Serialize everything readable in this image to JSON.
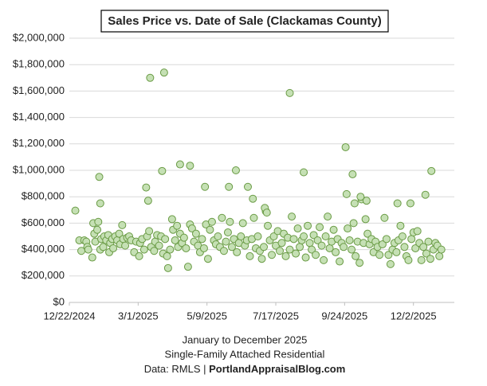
{
  "chart_data": {
    "type": "scatter",
    "title": "Sales Price vs. Date of Sale (Clackamas County)",
    "notes": [
      "January to December 2025",
      "Single-Family Attached Residential"
    ],
    "source": {
      "label": "Data: RMLS |",
      "site": "PortlandAppraisalBlog.com"
    },
    "marker_fill": "#c5e0b4",
    "marker_stroke": "#6a9b45",
    "grid": true,
    "xlim": [
      "2024-12-22",
      "2026-01-12"
    ],
    "xticks": [
      {
        "value": "2024-12-22",
        "label": "12/22/2024"
      },
      {
        "value": "2025-03-01",
        "label": "3/1/2025"
      },
      {
        "value": "2025-05-09",
        "label": "5/9/2025"
      },
      {
        "value": "2025-07-17",
        "label": "7/17/2025"
      },
      {
        "value": "2025-09-24",
        "label": "9/24/2025"
      },
      {
        "value": "2025-12-02",
        "label": "12/2/2025"
      }
    ],
    "ylim": [
      0,
      2000000
    ],
    "yticks": [
      {
        "value": 0,
        "label": "$0"
      },
      {
        "value": 200000,
        "label": "$200,000"
      },
      {
        "value": 400000,
        "label": "$400,000"
      },
      {
        "value": 600000,
        "label": "$600,000"
      },
      {
        "value": 800000,
        "label": "$800,000"
      },
      {
        "value": 1000000,
        "label": "$1,000,000"
      },
      {
        "value": 1200000,
        "label": "$1,200,000"
      },
      {
        "value": 1400000,
        "label": "$1,400,000"
      },
      {
        "value": 1600000,
        "label": "$1,600,000"
      },
      {
        "value": 1800000,
        "label": "$1,800,000"
      },
      {
        "value": 2000000,
        "label": "$2,000,000"
      }
    ],
    "x": [
      "2025-01-01",
      "2025-01-03",
      "2025-01-06",
      "2025-01-08",
      "2025-01-09",
      "2025-01-10",
      "2025-01-14",
      "2025-01-15",
      "2025-01-16",
      "2025-01-17",
      "2025-01-19",
      "2025-01-20",
      "2025-01-22",
      "2025-01-23",
      "2025-01-25",
      "2025-01-26",
      "2025-01-28",
      "2025-01-30",
      "2025-01-31",
      "2025-02-01",
      "2025-02-03",
      "2025-02-04",
      "2025-02-06",
      "2025-02-08",
      "2025-02-10",
      "2025-02-11",
      "2025-02-13",
      "2025-02-14",
      "2025-02-16",
      "2025-02-18",
      "2025-02-20",
      "2025-02-22",
      "2025-02-25",
      "2025-02-27",
      "2025-03-02",
      "2025-03-03",
      "2025-03-05",
      "2025-03-07",
      "2025-03-10",
      "2025-03-12",
      "2025-03-14",
      "2025-03-17",
      "2025-03-18",
      "2025-03-20",
      "2025-03-22",
      "2025-03-24",
      "2025-03-26",
      "2025-03-28",
      "2025-03-30",
      "2025-03-31",
      "2025-04-02",
      "2025-04-04",
      "2025-04-05",
      "2025-04-07",
      "2025-04-09",
      "2025-04-10",
      "2025-04-12",
      "2025-04-14",
      "2025-04-16",
      "2025-04-18",
      "2025-04-20",
      "2025-04-22",
      "2025-04-24",
      "2025-04-26",
      "2025-04-28",
      "2025-04-30",
      "2025-05-02",
      "2025-05-04",
      "2025-05-06",
      "2025-05-08",
      "2025-05-10",
      "2025-05-12",
      "2025-05-14",
      "2025-05-16",
      "2025-05-18",
      "2025-05-20",
      "2025-05-22",
      "2025-05-24",
      "2025-05-26",
      "2025-05-28",
      "2025-05-30",
      "2025-06-01",
      "2025-06-03",
      "2025-06-05",
      "2025-06-08",
      "2025-06-10",
      "2025-06-12",
      "2025-06-14",
      "2025-06-16",
      "2025-06-18",
      "2025-06-21",
      "2025-06-23",
      "2025-06-25",
      "2025-06-27",
      "2025-06-29",
      "2025-07-01",
      "2025-07-03",
      "2025-07-05",
      "2025-07-07",
      "2025-07-09",
      "2025-07-11",
      "2025-07-13",
      "2025-07-15",
      "2025-07-17",
      "2025-07-19",
      "2025-07-21",
      "2025-07-23",
      "2025-07-25",
      "2025-07-27",
      "2025-07-29",
      "2025-07-31",
      "2025-08-02",
      "2025-08-04",
      "2025-08-06",
      "2025-08-08",
      "2025-08-10",
      "2025-08-12",
      "2025-08-14",
      "2025-08-16",
      "2025-08-18",
      "2025-08-20",
      "2025-08-22",
      "2025-08-24",
      "2025-08-26",
      "2025-08-28",
      "2025-08-30",
      "2025-09-01",
      "2025-09-03",
      "2025-09-05",
      "2025-09-07",
      "2025-09-09",
      "2025-09-11",
      "2025-09-13",
      "2025-09-15",
      "2025-09-17",
      "2025-09-19",
      "2025-09-21",
      "2025-09-23",
      "2025-09-27",
      "2025-09-29",
      "2025-10-01",
      "2025-10-03",
      "2025-10-05",
      "2025-10-07",
      "2025-10-09",
      "2025-10-11",
      "2025-10-13",
      "2025-10-15",
      "2025-10-17",
      "2025-10-19",
      "2025-10-21",
      "2025-10-23",
      "2025-10-25",
      "2025-10-27",
      "2025-10-29",
      "2025-11-01",
      "2025-11-03",
      "2025-11-05",
      "2025-11-07",
      "2025-11-09",
      "2025-11-11",
      "2025-11-13",
      "2025-11-15",
      "2025-11-17",
      "2025-11-19",
      "2025-11-21",
      "2025-11-23",
      "2025-11-25",
      "2025-11-27",
      "2025-11-30",
      "2025-12-02",
      "2025-12-04",
      "2025-12-06",
      "2025-12-08",
      "2025-12-10",
      "2025-12-12",
      "2025-12-15",
      "2025-12-17",
      "2025-12-19",
      "2025-12-22",
      "2025-12-24",
      "2025-12-26",
      "2025-12-28",
      "2025-12-30",
      "2025-03-13",
      "2025-03-27",
      "2025-07-31",
      "2025-09-25",
      "2025-04-12",
      "2025-04-22",
      "2025-03-25",
      "2025-06-07",
      "2025-08-14",
      "2025-10-02",
      "2025-12-20",
      "2025-01-21",
      "2025-03-09",
      "2025-05-07",
      "2025-05-31",
      "2025-06-19",
      "2025-06-24",
      "2025-03-11",
      "2025-01-22",
      "2024-12-28",
      "2025-09-26",
      "2025-12-14",
      "2025-10-10",
      "2025-10-16",
      "2025-10-04",
      "2025-11-29",
      "2025-11-16",
      "2025-07-06",
      "2025-07-08"
    ],
    "values": [
      470000,
      390000,
      470000,
      460000,
      420000,
      400000,
      340000,
      600000,
      520000,
      460000,
      550000,
      610000,
      400000,
      480000,
      420000,
      500000,
      470000,
      510000,
      380000,
      450000,
      480000,
      410000,
      500000,
      470000,
      520000,
      440000,
      585000,
      480000,
      430000,
      490000,
      500000,
      470000,
      380000,
      460000,
      350000,
      450000,
      480000,
      400000,
      500000,
      540000,
      420000,
      390000,
      460000,
      510000,
      430000,
      500000,
      370000,
      480000,
      350000,
      260000,
      400000,
      630000,
      550000,
      470000,
      580000,
      420000,
      520000,
      450000,
      490000,
      410000,
      270000,
      590000,
      560000,
      460000,
      520000,
      430000,
      380000,
      480000,
      410000,
      590000,
      330000,
      550000,
      610000,
      470000,
      440000,
      500000,
      420000,
      640000,
      390000,
      460000,
      530000,
      610000,
      420000,
      480000,
      380000,
      450000,
      500000,
      600000,
      430000,
      470000,
      350000,
      480000,
      640000,
      410000,
      500000,
      390000,
      330000,
      420000,
      690000,
      580000,
      470000,
      360000,
      500000,
      430000,
      540000,
      390000,
      450000,
      520000,
      350000,
      490000,
      400000,
      650000,
      480000,
      370000,
      560000,
      420000,
      470000,
      500000,
      340000,
      580000,
      450000,
      400000,
      510000,
      360000,
      470000,
      570000,
      430000,
      320000,
      500000,
      650000,
      410000,
      460000,
      550000,
      380000,
      480000,
      310000,
      450000,
      420000,
      560000,
      470000,
      400000,
      600000,
      350000,
      460000,
      300000,
      780000,
      450000,
      630000,
      520000,
      440000,
      480000,
      380000,
      460000,
      420000,
      360000,
      440000,
      640000,
      480000,
      360000,
      290000,
      400000,
      450000,
      380000,
      470000,
      580000,
      500000,
      420000,
      350000,
      320000,
      480000,
      530000,
      410000,
      540000,
      450000,
      320000,
      420000,
      370000,
      460000,
      330000,
      400000,
      450000,
      430000,
      350000,
      400000,
      1700000,
      1740000,
      1585000,
      1175000,
      1045000,
      1035000,
      995000,
      1000000,
      985000,
      970000,
      995000,
      950000,
      870000,
      875000,
      875000,
      875000,
      785000,
      770000,
      750000,
      695000,
      820000,
      815000,
      800000,
      770000,
      750000,
      750000,
      750000,
      715000,
      680000
    ]
  }
}
